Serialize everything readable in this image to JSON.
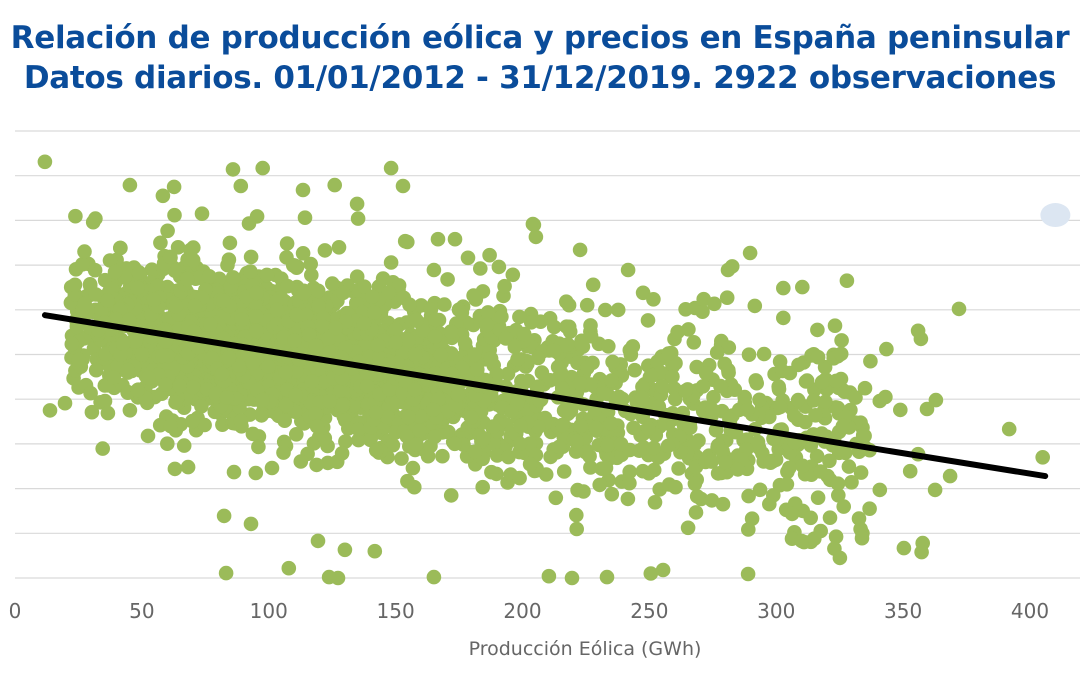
{
  "chart_data": {
    "type": "scatter",
    "title": "Relación de producción eólica y precios en España peninsular",
    "subtitle": "Datos diarios. 01/01/2012 - 31/12/2019. 2922 observaciones",
    "xlabel": "Producción Eólica (GWh)",
    "ylabel": "",
    "xlim": [
      0,
      420
    ],
    "ylim": [
      0,
      100
    ],
    "x_ticks": [
      0,
      50,
      100,
      150,
      200,
      250,
      300,
      350,
      400
    ],
    "y_gridlines": [
      0,
      10,
      20,
      30,
      40,
      50,
      60,
      70,
      80,
      90,
      100
    ],
    "grid": true,
    "legend": "none",
    "n_observations": 2922,
    "colors": {
      "points": "#9BBB59",
      "trendline": "#000000",
      "title": "#0A4C9A",
      "grid": "#D9D9D9",
      "highlight": "#DCE6F2"
    },
    "trendline": {
      "x": [
        11.8,
        406
      ],
      "y": [
        58.8,
        22.8
      ]
    },
    "highlight_point": {
      "x": 410,
      "y": 81.2
    },
    "points": [
      [
        11.8,
        93.1
      ],
      [
        85.9,
        91.4
      ],
      [
        97.6,
        91.7
      ],
      [
        148.2,
        91.7
      ],
      [
        45.3,
        87.9
      ],
      [
        89,
        87.7
      ],
      [
        113.5,
        86.8
      ],
      [
        126,
        87.9
      ],
      [
        152.9,
        87.7
      ],
      [
        62.7,
        87.5
      ],
      [
        58.3,
        85.5
      ],
      [
        134.8,
        83.7
      ],
      [
        135.2,
        80.4
      ],
      [
        114.3,
        80.6
      ],
      [
        73.7,
        81.5
      ],
      [
        95.4,
        80.9
      ],
      [
        92.2,
        79.3
      ],
      [
        204.5,
        79
      ],
      [
        205.3,
        76.3
      ],
      [
        405,
        27
      ],
      [
        391.8,
        33.3
      ],
      [
        372,
        60.2
      ],
      [
        288.9,
        0.9
      ],
      [
        255.4,
        1.8
      ],
      [
        233.3,
        0.2
      ],
      [
        219.5,
        0
      ],
      [
        210.4,
        0.4
      ],
      [
        165.1,
        0.2
      ],
      [
        127.3,
        0
      ],
      [
        123.8,
        0.2
      ],
      [
        83.2,
        1.1
      ],
      [
        107.9,
        2.2
      ],
      [
        82.4,
        13.9
      ],
      [
        93,
        12.1
      ],
      [
        119.4,
        8.3
      ],
      [
        130,
        6.3
      ],
      [
        141.8,
        6
      ],
      [
        325.1,
        4.5
      ],
      [
        333.8,
        8.9
      ],
      [
        350.3,
        6.7
      ],
      [
        357.7,
        7.8
      ],
      [
        357.3,
        5.8
      ],
      [
        362.6,
        19.7
      ],
      [
        368.5,
        22.8
      ],
      [
        352.8,
        23.9
      ],
      [
        355.9,
        27.7
      ],
      [
        359.4,
        37.8
      ],
      [
        362.9,
        39.8
      ],
      [
        340.8,
        39.6
      ],
      [
        334.8,
        31.8
      ],
      [
        336.8,
        28.6
      ],
      [
        340.8,
        19.7
      ],
      [
        336.8,
        15.5
      ],
      [
        343,
        40.5
      ],
      [
        348.9,
        37.6
      ],
      [
        357,
        53.5
      ],
      [
        355.9,
        55.3
      ],
      [
        343.4,
        51.2
      ],
      [
        337.1,
        48.5
      ],
      [
        316.2,
        55.5
      ],
      [
        323.6,
        44.1
      ],
      [
        281,
        68.9
      ],
      [
        289.7,
        72.7
      ],
      [
        222.7,
        73.4
      ],
      [
        204.1,
        79.2
      ],
      [
        190.7,
        69.6
      ],
      [
        166.7,
        75.8
      ],
      [
        173.4,
        75.8
      ],
      [
        165.1,
        68.9
      ],
      [
        241.6,
        68.9
      ],
      [
        13.8,
        37.5
      ],
      [
        19.7,
        39.1
      ],
      [
        30.3,
        37.1
      ],
      [
        36.6,
        36.9
      ],
      [
        52.4,
        31.8
      ],
      [
        63,
        24.4
      ],
      [
        68.2,
        24.8
      ],
      [
        86.3,
        23.7
      ],
      [
        94.9,
        23.5
      ],
      [
        101.3,
        24.6
      ]
    ],
    "cluster": {
      "count": 2840,
      "x_center": 95,
      "x_spread": 38,
      "x_min": 22,
      "tail_share": 0.33,
      "tail_range": [
        140,
        335
      ],
      "y_noise": 8.5
    }
  }
}
